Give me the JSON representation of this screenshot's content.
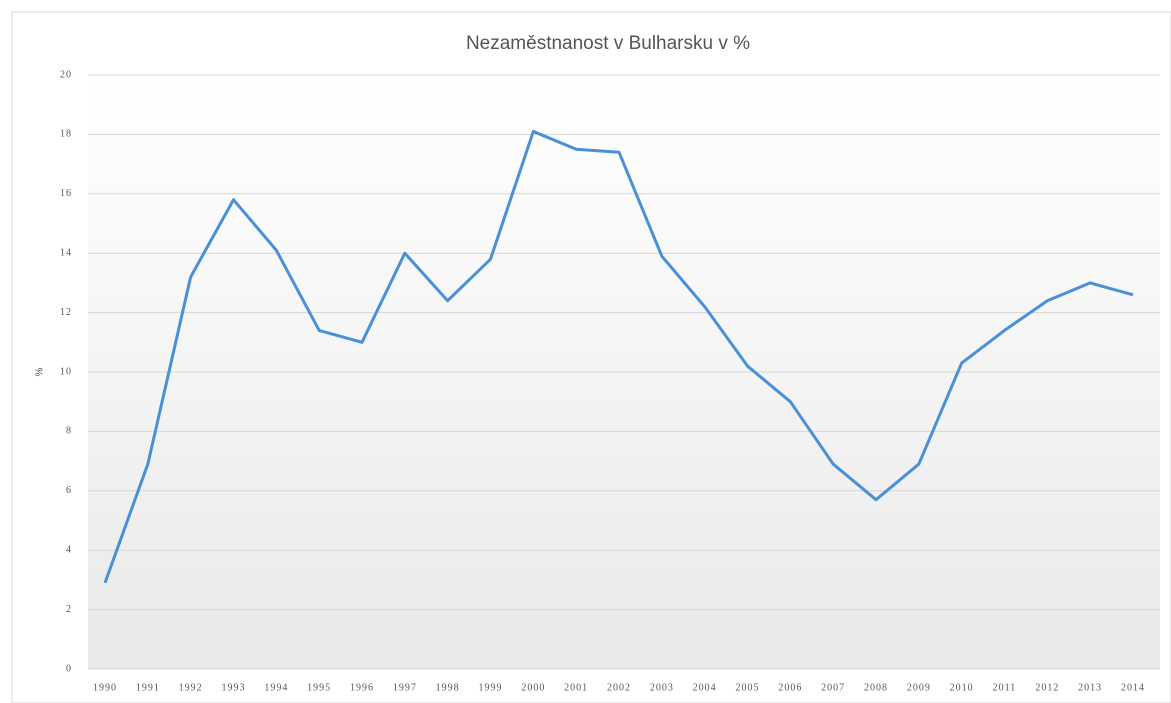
{
  "chart_data": {
    "type": "line",
    "title": "Nezaměstnanost v Bulharsku v %",
    "y_label": "%",
    "categories": [
      "1990",
      "1991",
      "1992",
      "1993",
      "1994",
      "1995",
      "1996",
      "1997",
      "1998",
      "1999",
      "2000",
      "2001",
      "2002",
      "2003",
      "2004",
      "2005",
      "2006",
      "2007",
      "2008",
      "2009",
      "2010",
      "2011",
      "2012",
      "2013",
      "2014"
    ],
    "series": [
      {
        "name": "Nezaměstnanost",
        "color": "#4a90d6",
        "values": [
          2.9,
          6.9,
          13.2,
          15.8,
          14.1,
          11.4,
          11.0,
          14.0,
          12.4,
          13.8,
          18.1,
          17.5,
          17.4,
          13.9,
          12.2,
          10.2,
          9.0,
          6.9,
          5.7,
          6.9,
          10.3,
          11.4,
          12.4,
          13.0,
          12.6
        ]
      }
    ],
    "ylim": [
      0,
      20
    ],
    "yticks": [
      0,
      2,
      4,
      6,
      8,
      10,
      12,
      14,
      16,
      18,
      20
    ],
    "grid": true
  }
}
